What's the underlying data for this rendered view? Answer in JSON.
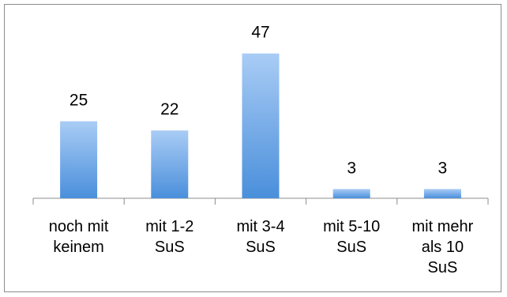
{
  "chart_data": {
    "type": "bar",
    "title": "",
    "xlabel": "",
    "ylabel": "",
    "categories": [
      [
        "noch mit",
        "keinem"
      ],
      [
        "mit 1-2",
        "SuS"
      ],
      [
        "mit 3-4",
        "SuS"
      ],
      [
        "mit 5-10",
        "SuS"
      ],
      [
        "mit mehr",
        "als 10",
        "SuS"
      ]
    ],
    "values": [
      25,
      22,
      47,
      3,
      3
    ],
    "data_labels": [
      "25",
      "22",
      "47",
      "3",
      "3"
    ],
    "ylim": [
      0,
      50
    ],
    "grid": false,
    "legend": "none",
    "colors": {
      "bar_top": "#a9ccf5",
      "bar_bottom": "#4a8fdb",
      "axis": "#8c8c8c",
      "border": "#8c8c8c"
    }
  }
}
